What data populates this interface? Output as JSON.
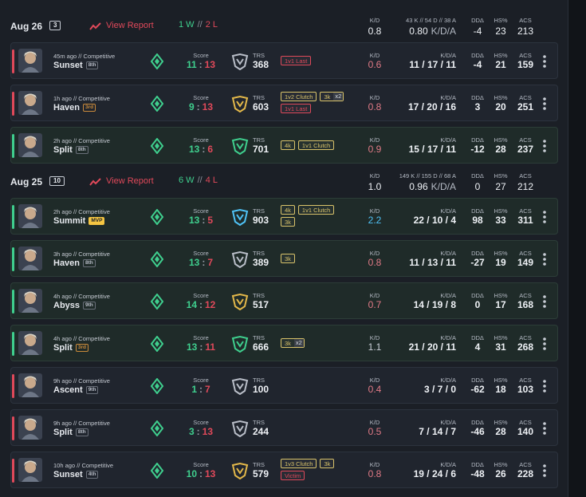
{
  "labels": {
    "score": "Score",
    "trs": "TRS",
    "kd": "K/D",
    "kda": "K/D/A",
    "dda": "DDΔ",
    "hs": "HS%",
    "acs": "ACS",
    "view_report": "View Report",
    "sep": "//",
    "colon": ":"
  },
  "days": [
    {
      "date": "Aug 26",
      "count": "3",
      "wins": "1 W",
      "losses": "2 L",
      "kda_detail": "43 K // 54 D // 38 A",
      "kd": "0.8",
      "kda": "0.80",
      "dda": "-4",
      "hs": "23",
      "acs": "213",
      "matches": [
        {
          "time": "45m ago // Competitive",
          "map": "Sunset",
          "rank": "8th",
          "score_a": "11",
          "score_b": "13",
          "trs": "368",
          "trs_color": "#b9bec8",
          "badges": [
            [
              {
                "text": "1v1 Last",
                "color": "#e0495a"
              }
            ]
          ],
          "kd": "0.6",
          "kda": "11 / 17 / 11",
          "dda": "-4",
          "hs": "21",
          "acs": "159"
        },
        {
          "time": "1h ago // Competitive",
          "map": "Haven",
          "rank": "3rd",
          "rank_color": "#c98a3b",
          "score_a": "9",
          "score_b": "13",
          "trs": "603",
          "trs_color": "#e3b84a",
          "badges": [
            [
              {
                "text": "1v2 Clutch",
                "color": "#d9c36a"
              },
              {
                "text": "3k",
                "color": "#d9c36a",
                "mult": "x2"
              }
            ],
            [
              {
                "text": "1v1 Last",
                "color": "#e0495a"
              }
            ]
          ],
          "kd": "0.8",
          "kda": "17 / 20 / 16",
          "dda": "3",
          "hs": "20",
          "acs": "251"
        },
        {
          "time": "2h ago // Competitive",
          "map": "Split",
          "rank": "8th",
          "score_a": "13",
          "score_b": "6",
          "trs": "701",
          "trs_color": "#3fcf8e",
          "badges": [
            [
              {
                "text": "4k",
                "color": "#d9c36a"
              },
              {
                "text": "1v1 Clutch",
                "color": "#d9c36a"
              }
            ]
          ],
          "kd": "0.9",
          "kda": "15 / 17 / 11",
          "dda": "-12",
          "hs": "28",
          "acs": "237"
        }
      ]
    },
    {
      "date": "Aug 25",
      "count": "10",
      "wins": "6 W",
      "losses": "4 L",
      "kda_detail": "149 K // 155 D // 68 A",
      "kd": "1.0",
      "kda": "0.96",
      "dda": "0",
      "hs": "27",
      "acs": "212",
      "matches": [
        {
          "time": "2h ago // Competitive",
          "map": "Summit",
          "rank": "MVP",
          "rank_color": "#f5c542",
          "score_a": "13",
          "score_b": "5",
          "trs": "903",
          "trs_color": "#4fc3f7",
          "badges": [
            [
              {
                "text": "4k",
                "color": "#d9c36a"
              },
              {
                "text": "1v1 Clutch",
                "color": "#d9c36a"
              }
            ],
            [
              {
                "text": "3k",
                "color": "#d9c36a"
              }
            ]
          ],
          "kd": "2.2",
          "kda": "22 / 10 / 4",
          "dda": "98",
          "hs": "33",
          "acs": "311"
        },
        {
          "time": "3h ago // Competitive",
          "map": "Haven",
          "rank": "8th",
          "score_a": "13",
          "score_b": "7",
          "trs": "389",
          "trs_color": "#b9bec8",
          "badges": [
            [
              {
                "text": "3k",
                "color": "#d9c36a"
              }
            ]
          ],
          "kd": "0.8",
          "kda": "11 / 13 / 11",
          "dda": "-27",
          "hs": "19",
          "acs": "149"
        },
        {
          "time": "4h ago // Competitive",
          "map": "Abyss",
          "rank": "9th",
          "score_a": "14",
          "score_b": "12",
          "trs": "517",
          "trs_color": "#e3b84a",
          "badges": [],
          "kd": "0.7",
          "kda": "14 / 19 / 8",
          "dda": "0",
          "hs": "17",
          "acs": "168"
        },
        {
          "time": "4h ago // Competitive",
          "map": "Split",
          "rank": "3rd",
          "rank_color": "#c98a3b",
          "score_a": "13",
          "score_b": "11",
          "trs": "666",
          "trs_color": "#3fcf8e",
          "badges": [
            [
              {
                "text": "3k",
                "color": "#d9c36a",
                "mult": "x2"
              }
            ]
          ],
          "kd": "1.1",
          "kda": "21 / 20 / 11",
          "dda": "4",
          "hs": "31",
          "acs": "268"
        },
        {
          "time": "9h ago // Competitive",
          "map": "Ascent",
          "rank": "9th",
          "score_a": "1",
          "score_b": "7",
          "trs": "100",
          "trs_color": "#b9bec8",
          "badges": [],
          "kd": "0.4",
          "kda": "3 / 7 / 0",
          "dda": "-62",
          "hs": "18",
          "acs": "103"
        },
        {
          "time": "9h ago // Competitive",
          "map": "Split",
          "rank": "8th",
          "score_a": "3",
          "score_b": "13",
          "trs": "244",
          "trs_color": "#b9bec8",
          "badges": [],
          "kd": "0.5",
          "kda": "7 / 14 / 7",
          "dda": "-46",
          "hs": "28",
          "acs": "140"
        },
        {
          "time": "10h ago // Competitive",
          "map": "Sunset",
          "rank": "4th",
          "score_a": "10",
          "score_b": "13",
          "trs": "579",
          "trs_color": "#e3b84a",
          "badges": [
            [
              {
                "text": "1v3 Clutch",
                "color": "#d9c36a"
              },
              {
                "text": "3k",
                "color": "#d9c36a"
              }
            ],
            [
              {
                "text": "Victim",
                "color": "#e0495a"
              }
            ]
          ],
          "kd": "0.8",
          "kda": "19 / 24 / 6",
          "dda": "-48",
          "hs": "26",
          "acs": "228"
        }
      ]
    }
  ]
}
